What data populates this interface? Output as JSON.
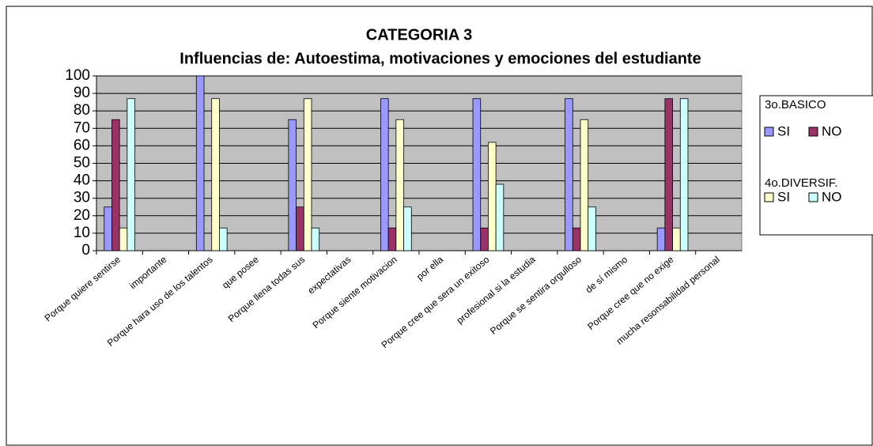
{
  "chart_data": {
    "type": "bar",
    "title": "CATEGORIA 3",
    "subtitle": "Influencias de: Autoestima, motivaciones y emociones del estudiante",
    "categories": [
      "Porque quiere sentirse",
      "importante",
      "Porque hara uso de los talentos",
      "que posee",
      "Porque llena todas sus",
      "expectativas",
      "Porque siente motivacion",
      "por ella",
      "Porque cree que sera un exitoso",
      "profesional si la estudia",
      "Porque se sentira orgulloso",
      "de sí mismo",
      "Porque cree que no exige",
      "mucha resonsabilidad personal"
    ],
    "legend_groups": [
      "3o.BASICO",
      "4o.DIVERSIF."
    ],
    "series": [
      {
        "name": "SI",
        "color": "#9999ff",
        "values": [
          25,
          null,
          100,
          null,
          75,
          null,
          87,
          null,
          87,
          null,
          87,
          null,
          13,
          null
        ]
      },
      {
        "name": "NO",
        "color": "#993366",
        "values": [
          75,
          null,
          0,
          null,
          25,
          null,
          13,
          null,
          13,
          null,
          13,
          null,
          87,
          null
        ]
      },
      {
        "name": "SI",
        "color": "#ffffcc",
        "values": [
          13,
          null,
          87,
          null,
          87,
          null,
          75,
          null,
          62,
          null,
          75,
          null,
          13,
          null
        ]
      },
      {
        "name": "NO",
        "color": "#ccffff",
        "values": [
          87,
          null,
          13,
          null,
          13,
          null,
          25,
          null,
          38,
          null,
          25,
          null,
          87,
          null
        ]
      }
    ],
    "ylim": [
      0,
      100
    ],
    "yticks": [
      0,
      10,
      20,
      30,
      40,
      50,
      60,
      70,
      80,
      90,
      100
    ],
    "grid": true,
    "legend": "right"
  }
}
